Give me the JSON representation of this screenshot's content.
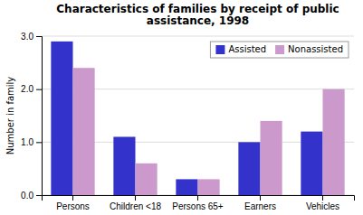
{
  "chart_data": {
    "type": "bar",
    "title": "Characteristics of families by receipt of public\nassistance, 1998",
    "categories": [
      "Persons",
      "Children <18",
      "Persons 65+",
      "Earners",
      "Vehicles"
    ],
    "series": [
      {
        "name": "Assisted",
        "color": "#3333cc",
        "values": [
          2.9,
          1.1,
          0.3,
          1.0,
          1.2
        ]
      },
      {
        "name": "Nonassisted",
        "color": "#cc99cc",
        "values": [
          2.4,
          0.6,
          0.3,
          1.4,
          2.0
        ]
      }
    ],
    "ylabel": "Number in family",
    "ylim": [
      0.0,
      3.0
    ],
    "yticks": [
      {
        "value": 0.0,
        "label": "0.0"
      },
      {
        "value": 1.0,
        "label": "1.0"
      },
      {
        "value": 2.0,
        "label": "2.0"
      },
      {
        "value": 3.0,
        "label": "3.0"
      }
    ],
    "grid": true,
    "legend": "upper right"
  }
}
